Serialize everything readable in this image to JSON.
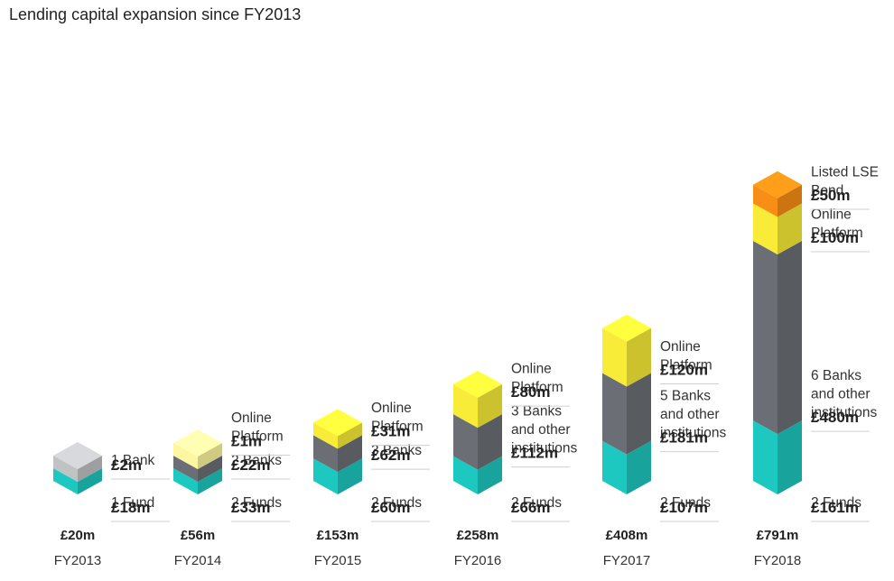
{
  "chart_data": {
    "type": "bar",
    "stacked": true,
    "title": "Lending capital expansion since FY2013",
    "categories": [
      "FY2013",
      "FY2014",
      "FY2015",
      "FY2016",
      "FY2017",
      "FY2018"
    ],
    "totals": [
      "£20m",
      "£56m",
      "£153m",
      "£258m",
      "£408m",
      "£791m"
    ],
    "colors": {
      "funds": "#1dc8c0",
      "banks": "#6b6f75",
      "online": "#f8ec38",
      "lse": "#f98e16",
      "fy2013_bank": "#c0c2c4",
      "fy2014_online": "#fcf7a0"
    },
    "columns": [
      {
        "category": "FY2013",
        "total": "£20m",
        "segments": [
          {
            "key": "funds",
            "value": 18,
            "lines": [
              "1 Fund"
            ],
            "label": "£18m"
          },
          {
            "key": "bank",
            "value": 2,
            "lines": [
              "1 Bank"
            ],
            "label": "£2m"
          }
        ]
      },
      {
        "category": "FY2014",
        "total": "£56m",
        "segments": [
          {
            "key": "funds",
            "value": 33,
            "lines": [
              "2 Funds"
            ],
            "label": "£33m"
          },
          {
            "key": "banks",
            "value": 22,
            "lines": [
              "2 Banks"
            ],
            "label": "£22m"
          },
          {
            "key": "online",
            "value": 1,
            "lines": [
              "Online",
              "Platform"
            ],
            "label": "£1m"
          }
        ]
      },
      {
        "category": "FY2015",
        "total": "£153m",
        "segments": [
          {
            "key": "funds",
            "value": 60,
            "lines": [
              "2 Funds"
            ],
            "label": "£60m"
          },
          {
            "key": "banks",
            "value": 62,
            "lines": [
              "3 Banks"
            ],
            "label": "£62m"
          },
          {
            "key": "online",
            "value": 31,
            "lines": [
              "Online",
              "Platform"
            ],
            "label": "£31m"
          }
        ]
      },
      {
        "category": "FY2016",
        "total": "£258m",
        "segments": [
          {
            "key": "funds",
            "value": 66,
            "lines": [
              "2 Funds"
            ],
            "label": "£66m"
          },
          {
            "key": "banks",
            "value": 112,
            "lines": [
              "3 Banks",
              "and other",
              "institutions"
            ],
            "label": "£112m"
          },
          {
            "key": "online",
            "value": 80,
            "lines": [
              "Online",
              "Platform"
            ],
            "label": "£80m"
          }
        ]
      },
      {
        "category": "FY2017",
        "total": "£408m",
        "segments": [
          {
            "key": "funds",
            "value": 107,
            "lines": [
              "2 Funds"
            ],
            "label": "£107m"
          },
          {
            "key": "banks",
            "value": 181,
            "lines": [
              "5 Banks",
              "and other",
              "institutions"
            ],
            "label": "£181m"
          },
          {
            "key": "online",
            "value": 120,
            "lines": [
              "Online",
              "Platform"
            ],
            "label": "£120m"
          }
        ]
      },
      {
        "category": "FY2018",
        "total": "£791m",
        "segments": [
          {
            "key": "funds",
            "value": 161,
            "lines": [
              "2 Funds"
            ],
            "label": "£161m"
          },
          {
            "key": "banks",
            "value": 480,
            "lines": [
              "6 Banks",
              "and other",
              "institutions"
            ],
            "label": "£480m"
          },
          {
            "key": "online",
            "value": 100,
            "lines": [
              "Online",
              "Platform"
            ],
            "label": "£100m"
          },
          {
            "key": "lse",
            "value": 50,
            "lines": [
              "Listed LSE",
              "Bond"
            ],
            "label": "£50m"
          }
        ]
      }
    ]
  }
}
